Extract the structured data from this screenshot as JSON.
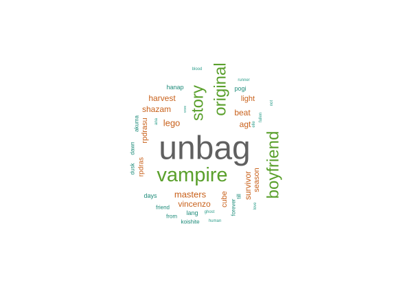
{
  "word_cloud": {
    "words": [
      {
        "text": "unbag",
        "color": "#606060",
        "rotated": false
      },
      {
        "text": "vampire",
        "color": "#5aa02c",
        "rotated": false
      },
      {
        "text": "boyfriend",
        "color": "#5aa02c",
        "rotated": true
      },
      {
        "text": "original",
        "color": "#5aa02c",
        "rotated": true
      },
      {
        "text": "story",
        "color": "#5aa02c",
        "rotated": true
      },
      {
        "text": "masters",
        "color": "#c8601a",
        "rotated": false
      },
      {
        "text": "vincenzo",
        "color": "#c8601a",
        "rotated": false
      },
      {
        "text": "lego",
        "color": "#c8601a",
        "rotated": false
      },
      {
        "text": "harvest",
        "color": "#c8601a",
        "rotated": false
      },
      {
        "text": "shazam",
        "color": "#c8601a",
        "rotated": false
      },
      {
        "text": "beat",
        "color": "#c8601a",
        "rotated": false
      },
      {
        "text": "agt",
        "color": "#c8601a",
        "rotated": false
      },
      {
        "text": "light",
        "color": "#c8601a",
        "rotated": false
      },
      {
        "text": "survivor",
        "color": "#c8601a",
        "rotated": true
      },
      {
        "text": "season",
        "color": "#c8601a",
        "rotated": true
      },
      {
        "text": "cube",
        "color": "#c8601a",
        "rotated": true
      },
      {
        "text": "rpdrasu",
        "color": "#c8601a",
        "rotated": true
      },
      {
        "text": "rpdras",
        "color": "#c8601a",
        "rotated": true
      },
      {
        "text": "pogi",
        "color": "#1b8a78",
        "rotated": false
      },
      {
        "text": "hanap",
        "color": "#1b8a78",
        "rotated": false
      },
      {
        "text": "days",
        "color": "#1b8a78",
        "rotated": false
      },
      {
        "text": "lang",
        "color": "#1b8a78",
        "rotated": false
      },
      {
        "text": "friend",
        "color": "#1b8a78",
        "rotated": false
      },
      {
        "text": "from",
        "color": "#1b8a78",
        "rotated": false
      },
      {
        "text": "koishite",
        "color": "#1b8a78",
        "rotated": false
      },
      {
        "text": "akuma",
        "color": "#1b8a78",
        "rotated": true
      },
      {
        "text": "dawn",
        "color": "#1b8a78",
        "rotated": true
      },
      {
        "text": "dusk",
        "color": "#1b8a78",
        "rotated": true
      },
      {
        "text": "till",
        "color": "#1b8a78",
        "rotated": true
      },
      {
        "text": "forever",
        "color": "#1b8a78",
        "rotated": true
      },
      {
        "text": "blood",
        "color": "#2a9d8a",
        "rotated": false
      },
      {
        "text": "runner",
        "color": "#2a9d8a",
        "rotated": false
      },
      {
        "text": "ghost",
        "color": "#2a9d8a",
        "rotated": false
      },
      {
        "text": "human",
        "color": "#2a9d8a",
        "rotated": false
      },
      {
        "text": "not",
        "color": "#2a9d8a",
        "rotated": true
      },
      {
        "text": "fallen",
        "color": "#2a9d8a",
        "rotated": true
      },
      {
        "text": "elle",
        "color": "#2a9d8a",
        "rotated": true
      },
      {
        "text": "love",
        "color": "#2a9d8a",
        "rotated": true
      },
      {
        "text": "ana",
        "color": "#2a9d8a",
        "rotated": true
      },
      {
        "text": "vxve",
        "color": "#2a9d8a",
        "rotated": true
      }
    ]
  }
}
